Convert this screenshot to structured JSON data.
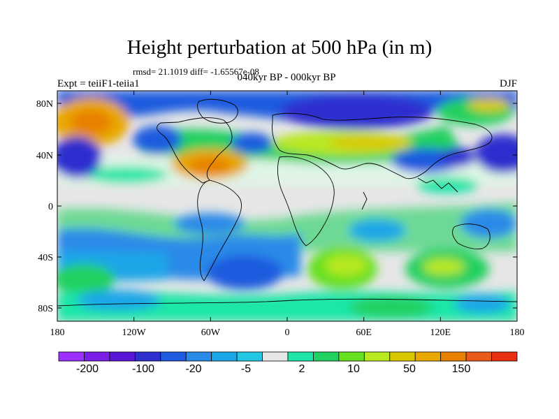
{
  "title": "Height perturbation at 500 hPa (in m)",
  "stats": "rmsd= 21.1019 diff= -1.65567e-08",
  "period": "040kyr BP - 000kyr BP",
  "expt": "Expt = teiiF1-teiia1",
  "season": "DJF",
  "lat_ticks": [
    "80N",
    "40N",
    "0",
    "40S",
    "80S"
  ],
  "lon_ticks": [
    "180",
    "120W",
    "60W",
    "0",
    "60E",
    "120E",
    "180"
  ],
  "colorbar": {
    "colors": [
      "#9b30ff",
      "#7a1fe6",
      "#5a16d6",
      "#2f2fcf",
      "#1f5bdf",
      "#2a8ae8",
      "#1aa6e8",
      "#23c6e3",
      "#e6e6e6",
      "#1de6a8",
      "#20d060",
      "#66e020",
      "#b8e820",
      "#d8c800",
      "#e8a800",
      "#e88000",
      "#e85a1a",
      "#e83010"
    ],
    "labels": [
      "-200",
      "-100",
      "-20",
      "-5",
      "2",
      "10",
      "50",
      "150"
    ]
  }
}
